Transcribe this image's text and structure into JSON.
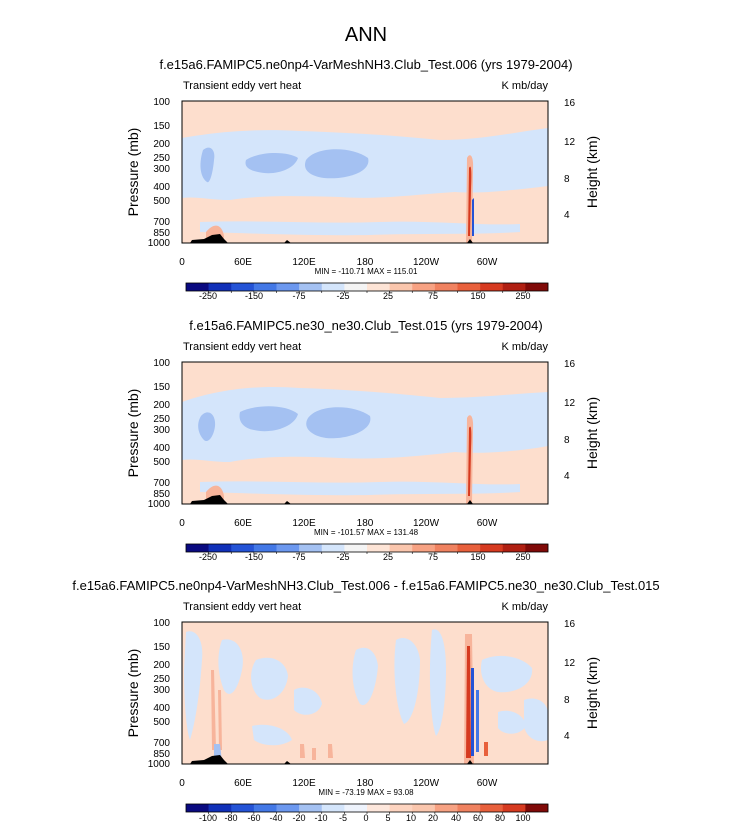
{
  "figure": {
    "title": "ANN"
  },
  "colors": {
    "ocean_background": "#fddecd",
    "negative_weak": "#d4e5fb",
    "negative_mid": "#a4c1f2",
    "negative_strong": "#2453d6",
    "positive_mid": "#f7b49b",
    "positive_strong": "#d63a20",
    "topography": "#000000",
    "frame": "#000000"
  },
  "chart_data": [
    {
      "type": "heatmap",
      "panel": "test",
      "title": "f.e15a6.FAMIPC5.ne0np4-VarMeshNH3.Club_Test.006 (yrs 1979-2004)",
      "left_label": "Transient eddy vert heat",
      "right_label": "K mb/day",
      "ylabel": "Pressure (mb)",
      "y2label": "Height (km)",
      "x_ticks": [
        "0",
        "60E",
        "120E",
        "180",
        "120W",
        "60W"
      ],
      "y_ticks": [
        "100",
        "150",
        "200",
        "250",
        "300",
        "400",
        "500",
        "700",
        "850",
        "1000"
      ],
      "y2_ticks": [
        "16",
        "12",
        "8",
        "4"
      ],
      "stats": "MIN = -110.71  MAX = 115.01",
      "min": -110.71,
      "max": 115.01,
      "colorbar_labels": [
        "-250",
        "-150",
        "-75",
        "-25",
        "25",
        "75",
        "150",
        "250"
      ]
    },
    {
      "type": "heatmap",
      "panel": "control",
      "title": "f.e15a6.FAMIPC5.ne30_ne30.Club_Test.015 (yrs 1979-2004)",
      "left_label": "Transient eddy vert heat",
      "right_label": "K mb/day",
      "ylabel": "Pressure (mb)",
      "y2label": "Height (km)",
      "x_ticks": [
        "0",
        "60E",
        "120E",
        "180",
        "120W",
        "60W"
      ],
      "y_ticks": [
        "100",
        "150",
        "200",
        "250",
        "300",
        "400",
        "500",
        "700",
        "850",
        "1000"
      ],
      "y2_ticks": [
        "16",
        "12",
        "8",
        "4"
      ],
      "stats": "MIN = -101.57  MAX = 131.48",
      "min": -101.57,
      "max": 131.48,
      "colorbar_labels": [
        "-250",
        "-150",
        "-75",
        "-25",
        "25",
        "75",
        "150",
        "250"
      ]
    },
    {
      "type": "heatmap",
      "panel": "difference",
      "title": "f.e15a6.FAMIPC5.ne0np4-VarMeshNH3.Club_Test.006 - f.e15a6.FAMIPC5.ne30_ne30.Club_Test.015",
      "left_label": "Transient eddy vert heat",
      "right_label": "K mb/day",
      "ylabel": "Pressure (mb)",
      "y2label": "Height (km)",
      "x_ticks": [
        "0",
        "60E",
        "120E",
        "180",
        "120W",
        "60W"
      ],
      "y_ticks": [
        "100",
        "150",
        "200",
        "250",
        "300",
        "400",
        "500",
        "700",
        "850",
        "1000"
      ],
      "y2_ticks": [
        "16",
        "12",
        "8",
        "4"
      ],
      "stats": "MIN = -73.19  MAX = 93.08",
      "min": -73.19,
      "max": 93.08,
      "colorbar_labels": [
        "-100",
        "-80",
        "-60",
        "-40",
        "-20",
        "-10",
        "-5",
        "0",
        "5",
        "10",
        "20",
        "40",
        "60",
        "80",
        "100"
      ]
    }
  ],
  "colorbar_colors": {
    "full": [
      "#0a0a80",
      "#1030b8",
      "#2453d6",
      "#4378e6",
      "#6c98ef",
      "#a4c1f2",
      "#d4e5fb",
      "#f4f4f4",
      "#fde4d6",
      "#fac6ad",
      "#f7a283",
      "#f08260",
      "#e8603c",
      "#d63a20",
      "#b01f12",
      "#800a08"
    ],
    "diff": [
      "#0a0a80",
      "#1030b8",
      "#2453d6",
      "#4378e6",
      "#6c98ef",
      "#a4c1f2",
      "#d4e5fb",
      "#eef3fc",
      "#fde7dc",
      "#fdd4c0",
      "#fac6ad",
      "#f7a283",
      "#f08260",
      "#e8603c",
      "#d63a20",
      "#800a08"
    ]
  }
}
